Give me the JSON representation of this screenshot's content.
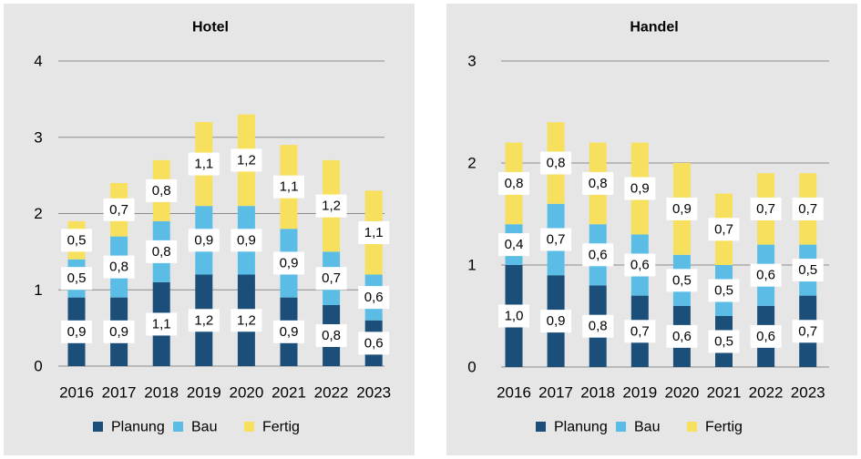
{
  "colors": {
    "Planung": "#1b4f7a",
    "Bau": "#5bbde6",
    "Fertig": "#f6e05e",
    "grid": "#8c8c8c",
    "panel_bg": "#e6e6e6"
  },
  "chart_data": [
    {
      "type": "bar",
      "stacked": true,
      "title": "Hotel",
      "categories": [
        "2016",
        "2017",
        "2018",
        "2019",
        "2020",
        "2021",
        "2022",
        "2023"
      ],
      "ylim": [
        0,
        4
      ],
      "yticks": [
        "0",
        "1",
        "2",
        "3",
        "4"
      ],
      "grid": true,
      "legend_position": "bottom",
      "series": [
        {
          "name": "Planung",
          "values": [
            0.9,
            0.9,
            1.1,
            1.2,
            1.2,
            0.9,
            0.8,
            0.6
          ],
          "labels": [
            "0,9",
            "0,9",
            "1,1",
            "1,2",
            "1,2",
            "0,9",
            "0,8",
            "0,6"
          ]
        },
        {
          "name": "Bau",
          "values": [
            0.5,
            0.8,
            0.8,
            0.9,
            0.9,
            0.9,
            0.7,
            0.6
          ],
          "labels": [
            "0,5",
            "0,8",
            "0,8",
            "0,9",
            "0,9",
            "0,9",
            "0,7",
            "0,6"
          ]
        },
        {
          "name": "Fertig",
          "values": [
            0.5,
            0.7,
            0.8,
            1.1,
            1.2,
            1.1,
            1.2,
            1.1
          ],
          "labels": [
            "0,5",
            "0,7",
            "0,8",
            "1,1",
            "1,2",
            "1,1",
            "1,2",
            "1,1"
          ]
        }
      ]
    },
    {
      "type": "bar",
      "stacked": true,
      "title": "Handel",
      "categories": [
        "2016",
        "2017",
        "2018",
        "2019",
        "2020",
        "2021",
        "2022",
        "2023"
      ],
      "ylim": [
        0,
        3
      ],
      "yticks": [
        "0",
        "1",
        "2",
        "3"
      ],
      "grid": true,
      "legend_position": "bottom",
      "series": [
        {
          "name": "Planung",
          "values": [
            1.0,
            0.9,
            0.8,
            0.7,
            0.6,
            0.5,
            0.6,
            0.7
          ],
          "labels": [
            "1,0",
            "0,9",
            "0,8",
            "0,7",
            "0,6",
            "0,5",
            "0,6",
            "0,7"
          ]
        },
        {
          "name": "Bau",
          "values": [
            0.4,
            0.7,
            0.6,
            0.6,
            0.5,
            0.5,
            0.6,
            0.5
          ],
          "labels": [
            "0,4",
            "0,7",
            "0,6",
            "0,6",
            "0,5",
            "0,5",
            "0,6",
            "0,5"
          ]
        },
        {
          "name": "Fertig",
          "values": [
            0.8,
            0.8,
            0.8,
            0.9,
            0.9,
            0.7,
            0.7,
            0.7
          ],
          "labels": [
            "0,8",
            "0,8",
            "0,8",
            "0,9",
            "0,9",
            "0,7",
            "0,7",
            "0,7"
          ]
        }
      ]
    }
  ]
}
